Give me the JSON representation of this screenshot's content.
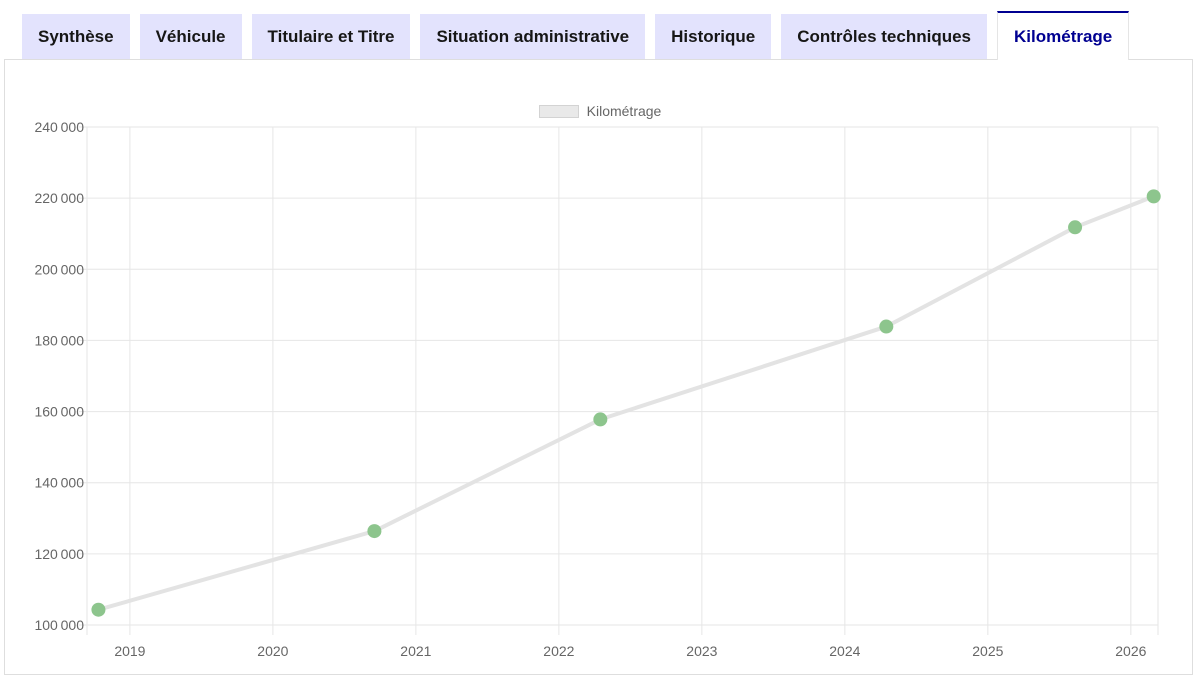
{
  "tabs": [
    {
      "label": "Synthèse",
      "active": false
    },
    {
      "label": "Véhicule",
      "active": false
    },
    {
      "label": "Titulaire et Titre",
      "active": false
    },
    {
      "label": "Situation administrative",
      "active": false
    },
    {
      "label": "Historique",
      "active": false
    },
    {
      "label": "Contrôles techniques",
      "active": false
    },
    {
      "label": "Kilométrage",
      "active": true
    }
  ],
  "colors": {
    "accent_blue": "#000091",
    "tab_background": "#e3e3fd",
    "tab_text": "#161616",
    "panel_border": "#dedede"
  },
  "chart_data": {
    "type": "line",
    "title": "",
    "xlabel": "",
    "ylabel": "",
    "legend_position": "top-center",
    "series": [
      {
        "name": "Kilométrage",
        "x": [
          2018.78,
          2020.71,
          2022.29,
          2024.29,
          2025.61,
          2026.16
        ],
        "values": [
          104300,
          126400,
          157800,
          183900,
          211800,
          220500
        ]
      }
    ],
    "xlim": [
      2018.7,
      2026.19
    ],
    "ylim": [
      100000,
      240000
    ],
    "x_ticks": [
      2019,
      2020,
      2021,
      2022,
      2023,
      2024,
      2025,
      2026
    ],
    "y_ticks": [
      100000,
      120000,
      140000,
      160000,
      180000,
      200000,
      220000,
      240000
    ],
    "y_tick_labels": [
      "100 000",
      "120 000",
      "140 000",
      "160 000",
      "180 000",
      "200 000",
      "220 000",
      "240 000"
    ],
    "grid": true,
    "grid_color": "#e6e6e6",
    "tick_text_color": "#666666",
    "line_color": "#e3e3e3",
    "point_color": "#8dc58d",
    "legend_swatch_fill": "#e9e9e9",
    "legend_swatch_border": "#d3d3d3"
  }
}
